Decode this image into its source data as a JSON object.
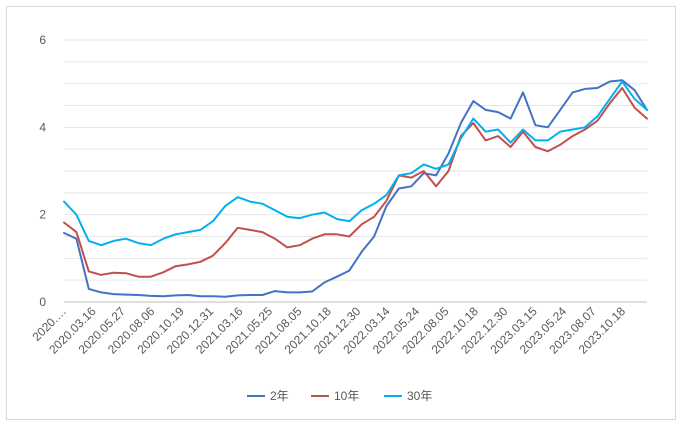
{
  "chart_data": {
    "type": "line",
    "title": "",
    "xlabel": "",
    "ylabel": "",
    "ylim": [
      0,
      6
    ],
    "y_ticks": [
      0,
      2,
      4,
      6
    ],
    "grid": "horizontal",
    "legend_position": "bottom",
    "x_tick_labels": [
      "2020.…",
      "2020.03.16",
      "2020.05.27",
      "2020.08.06",
      "2020.10.19",
      "2020.12.31",
      "2021.03.16",
      "2021.05.25",
      "2021.08.05",
      "2021.10.18",
      "2021.12.30",
      "2022.03.14",
      "2022.05.24",
      "2022.08.05",
      "2022.10.18",
      "2022.12.30",
      "2023.03.15",
      "2023.05.24",
      "2023.08.07",
      "2023.10.18"
    ],
    "x": [
      "2020-01",
      "2020-02",
      "2020-03",
      "2020-04",
      "2020-05",
      "2020-06",
      "2020-07",
      "2020-08",
      "2020-09",
      "2020-10",
      "2020-11",
      "2020-12",
      "2021-01",
      "2021-02",
      "2021-03",
      "2021-04",
      "2021-05",
      "2021-06",
      "2021-07",
      "2021-08",
      "2021-09",
      "2021-10",
      "2021-11",
      "2021-12",
      "2022-01",
      "2022-02",
      "2022-03",
      "2022-04",
      "2022-05",
      "2022-06",
      "2022-07",
      "2022-08",
      "2022-09",
      "2022-10",
      "2022-11",
      "2022-12",
      "2023-01",
      "2023-02",
      "2023-03",
      "2023-04",
      "2023-05",
      "2023-06",
      "2023-07",
      "2023-08",
      "2023-09",
      "2023-10",
      "2023-11",
      "2023-12"
    ],
    "series": [
      {
        "name": "2年",
        "color": "#4472C4",
        "values": [
          1.58,
          1.45,
          0.3,
          0.22,
          0.18,
          0.17,
          0.16,
          0.14,
          0.13,
          0.15,
          0.16,
          0.13,
          0.13,
          0.12,
          0.15,
          0.16,
          0.16,
          0.25,
          0.22,
          0.22,
          0.24,
          0.45,
          0.58,
          0.72,
          1.15,
          1.5,
          2.2,
          2.6,
          2.65,
          2.95,
          2.9,
          3.4,
          4.1,
          4.6,
          4.4,
          4.35,
          4.2,
          4.8,
          4.05,
          4.0,
          4.4,
          4.8,
          4.88,
          4.9,
          5.05,
          5.08,
          4.85,
          4.4
        ]
      },
      {
        "name": "10年",
        "color": "#C0504D",
        "values": [
          1.82,
          1.6,
          0.7,
          0.62,
          0.67,
          0.66,
          0.58,
          0.58,
          0.68,
          0.82,
          0.86,
          0.92,
          1.06,
          1.35,
          1.7,
          1.65,
          1.6,
          1.45,
          1.25,
          1.3,
          1.45,
          1.55,
          1.55,
          1.5,
          1.78,
          1.95,
          2.32,
          2.9,
          2.85,
          3.0,
          2.65,
          3.0,
          3.8,
          4.1,
          3.7,
          3.8,
          3.55,
          3.9,
          3.55,
          3.45,
          3.6,
          3.8,
          3.95,
          4.15,
          4.55,
          4.9,
          4.45,
          4.2
        ]
      },
      {
        "name": "30年",
        "color": "#00B0F0",
        "values": [
          2.3,
          2.0,
          1.4,
          1.3,
          1.4,
          1.45,
          1.35,
          1.3,
          1.45,
          1.55,
          1.6,
          1.65,
          1.85,
          2.2,
          2.4,
          2.3,
          2.25,
          2.1,
          1.95,
          1.92,
          2.0,
          2.05,
          1.9,
          1.85,
          2.1,
          2.25,
          2.45,
          2.9,
          2.95,
          3.15,
          3.05,
          3.15,
          3.75,
          4.2,
          3.9,
          3.95,
          3.65,
          3.95,
          3.7,
          3.7,
          3.9,
          3.95,
          4.0,
          4.25,
          4.65,
          5.05,
          4.65,
          4.4
        ]
      }
    ]
  }
}
